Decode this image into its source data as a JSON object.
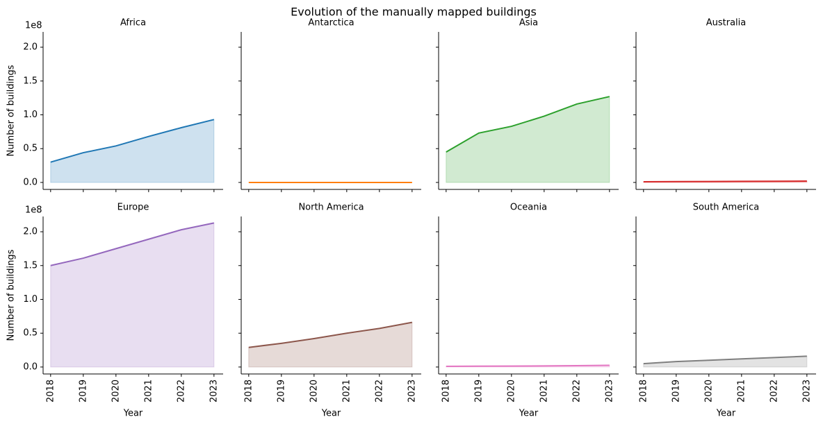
{
  "title": "Evolution of the manually mapped buildings",
  "ylim": [
    -0.103,
    2.226
  ],
  "yticks": [
    {
      "value": 0,
      "label": "0.0"
    },
    0.5,
    {
      "value": 1,
      "label": "1.0"
    },
    1.5,
    {
      "value": 2,
      "label": "2.0"
    }
  ],
  "xlim": [
    2017.77,
    2023.28
  ],
  "xticks": [
    2018,
    2019,
    2020,
    2021,
    2022,
    2023
  ],
  "chart_data": [
    {
      "type": "area",
      "title": "Africa",
      "ylabel": "Number of buildings",
      "y_offset_label": "1e8",
      "color": "#1f77b4",
      "x": [
        2018,
        2019,
        2020,
        2021,
        2022,
        2023
      ],
      "values": [
        0.3,
        0.44,
        0.54,
        0.68,
        0.81,
        0.93
      ]
    },
    {
      "type": "area",
      "title": "Antarctica",
      "color": "#ff7f0e",
      "x": [
        2018,
        2019,
        2020,
        2021,
        2022,
        2023
      ],
      "values": [
        0,
        0,
        0,
        0,
        0,
        0
      ]
    },
    {
      "type": "area",
      "title": "Asia",
      "color": "#2ca02c",
      "x": [
        2018,
        2019,
        2020,
        2021,
        2022,
        2023
      ],
      "values": [
        0.45,
        0.73,
        0.83,
        0.98,
        1.16,
        1.27
      ]
    },
    {
      "type": "area",
      "title": "Australia",
      "color": "#d62728",
      "x": [
        2018,
        2019,
        2020,
        2021,
        2022,
        2023
      ],
      "values": [
        0.01,
        0.012,
        0.014,
        0.016,
        0.018,
        0.02
      ]
    },
    {
      "type": "area",
      "title": "Europe",
      "ylabel": "Number of buildings",
      "y_offset_label": "1e8",
      "xlabel": "Year",
      "color": "#9467bd",
      "x": [
        2018,
        2019,
        2020,
        2021,
        2022,
        2023
      ],
      "values": [
        1.5,
        1.61,
        1.75,
        1.89,
        2.03,
        2.13
      ]
    },
    {
      "type": "area",
      "title": "North America",
      "xlabel": "Year",
      "color": "#8c564b",
      "x": [
        2018,
        2019,
        2020,
        2021,
        2022,
        2023
      ],
      "values": [
        0.29,
        0.35,
        0.42,
        0.5,
        0.57,
        0.66
      ]
    },
    {
      "type": "area",
      "title": "Oceania",
      "xlabel": "Year",
      "color": "#e377c2",
      "x": [
        2018,
        2019,
        2020,
        2021,
        2022,
        2023
      ],
      "values": [
        0.01,
        0.012,
        0.014,
        0.016,
        0.02,
        0.025
      ]
    },
    {
      "type": "area",
      "title": "South America",
      "xlabel": "Year",
      "color": "#7f7f7f",
      "x": [
        2018,
        2019,
        2020,
        2021,
        2022,
        2023
      ],
      "values": [
        0.05,
        0.08,
        0.1,
        0.12,
        0.14,
        0.16
      ]
    }
  ]
}
